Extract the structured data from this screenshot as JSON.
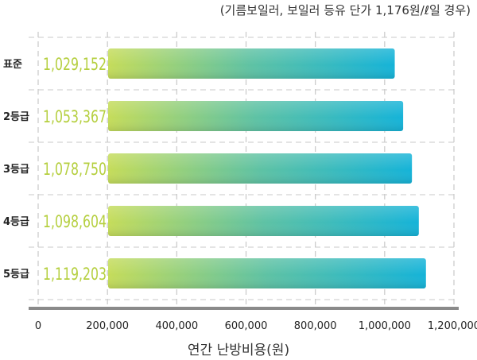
{
  "chart_data": {
    "type": "bar",
    "orientation": "horizontal",
    "subtitle": "(기름보일러, 보일러 등유 단가 1,176원/ℓ일 경우)",
    "xlabel": "연간 난방비용(원)",
    "ylabel": "",
    "categories": [
      "표준",
      "2등급",
      "3등급",
      "4등급",
      "5등급"
    ],
    "values": [
      1029152,
      1053367,
      1078750,
      1098604,
      1119203
    ],
    "value_labels": [
      "1,029,152",
      "1,053,367",
      "1,078,750",
      "1,098,604",
      "1,119,203"
    ],
    "xlim": [
      0,
      1200000
    ],
    "x_ticks": [
      0,
      200000,
      400000,
      600000,
      800000,
      1000000,
      1200000
    ],
    "x_tick_labels": [
      "0",
      "200,000",
      "400,000",
      "600,000",
      "800,000",
      "1,000,000",
      "1,200,000"
    ],
    "grid": "vertical-dashed",
    "legend": "none",
    "colors": {
      "bar_start": "#c5dc5a",
      "bar_mid": "#5ec2a4",
      "bar_end": "#15b3d8",
      "value_label": "#b5cf3f",
      "grid": "#c8c8c8",
      "axis": "#8a8a8a"
    }
  }
}
